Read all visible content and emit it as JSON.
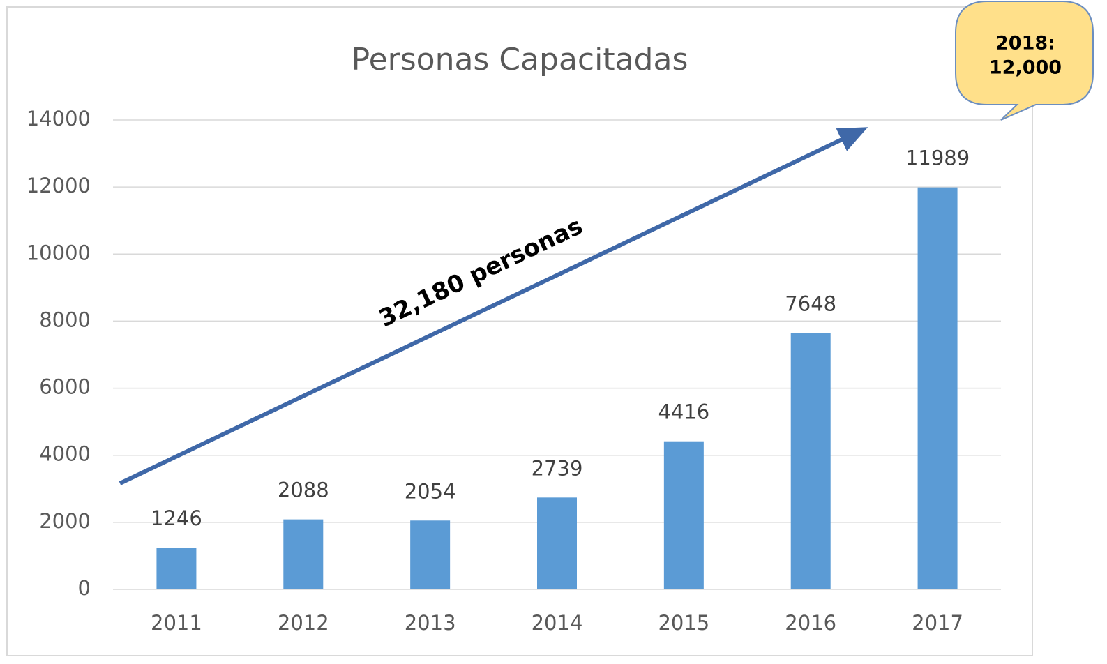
{
  "chart_data": {
    "type": "bar",
    "title": "Personas Capacitadas",
    "categories": [
      "2011",
      "2012",
      "2013",
      "2014",
      "2015",
      "2016",
      "2017"
    ],
    "values": [
      1246,
      2088,
      2054,
      2739,
      4416,
      7648,
      11989
    ],
    "color": "#5b9bd5",
    "ylim": [
      0,
      14000
    ],
    "yticks": [
      0,
      2000,
      4000,
      6000,
      8000,
      10000,
      12000,
      14000
    ],
    "grid": true,
    "annotations": {
      "arrow_label": "32,180 personas",
      "callout": [
        "2018:",
        "12,000"
      ]
    }
  }
}
